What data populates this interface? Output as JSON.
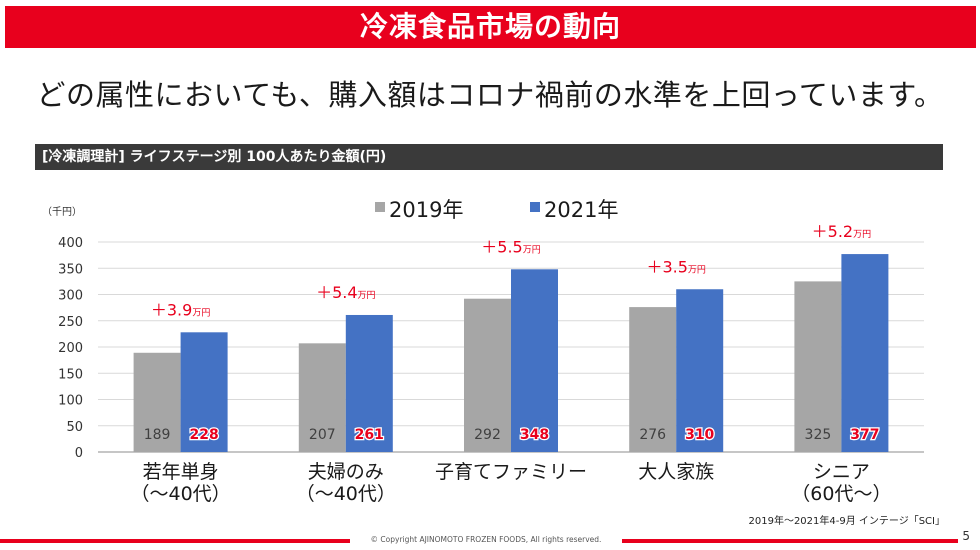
{
  "slide": {
    "title": "冷凍食品市場の動向",
    "headline": "どの属性においても、購入額はコロナ禍前の水準を上回っています。",
    "chart_header": "[冷凍調理計] ライフステージ別 100人あたり金額(円)",
    "source_note": "2019年～2021年4-9月 インテージ「SCI」",
    "copyright": "© Copyright AJINOMOTO FROZEN FOODS, All rights reserved.",
    "page_number": "5"
  },
  "colors": {
    "brand_red": "#e8001d",
    "series_2019": "#a6a6a6",
    "series_2021": "#4472c4",
    "increase_label": "#e8001d"
  },
  "chart_data": {
    "type": "bar",
    "unit_label": "（千円）",
    "ylim": [
      0,
      400
    ],
    "yticks": [
      0,
      50,
      100,
      150,
      200,
      250,
      300,
      350,
      400
    ],
    "grid": true,
    "legend_position": "top",
    "categories": [
      [
        "若年単身",
        "（～40代）"
      ],
      [
        "夫婦のみ",
        "（～40代）"
      ],
      [
        "子育てファミリー"
      ],
      [
        "大人家族"
      ],
      [
        "シニア",
        "（60代～）"
      ]
    ],
    "series": [
      {
        "name": "2019年",
        "values": [
          189,
          207,
          292,
          276,
          325
        ]
      },
      {
        "name": "2021年",
        "values": [
          228,
          261,
          348,
          310,
          377
        ]
      }
    ],
    "increase_labels": [
      {
        "value": "＋3.9",
        "unit": "万円"
      },
      {
        "value": "＋5.4",
        "unit": "万円"
      },
      {
        "value": "＋5.5",
        "unit": "万円"
      },
      {
        "value": "＋3.5",
        "unit": "万円"
      },
      {
        "value": "＋5.2",
        "unit": "万円"
      }
    ]
  }
}
